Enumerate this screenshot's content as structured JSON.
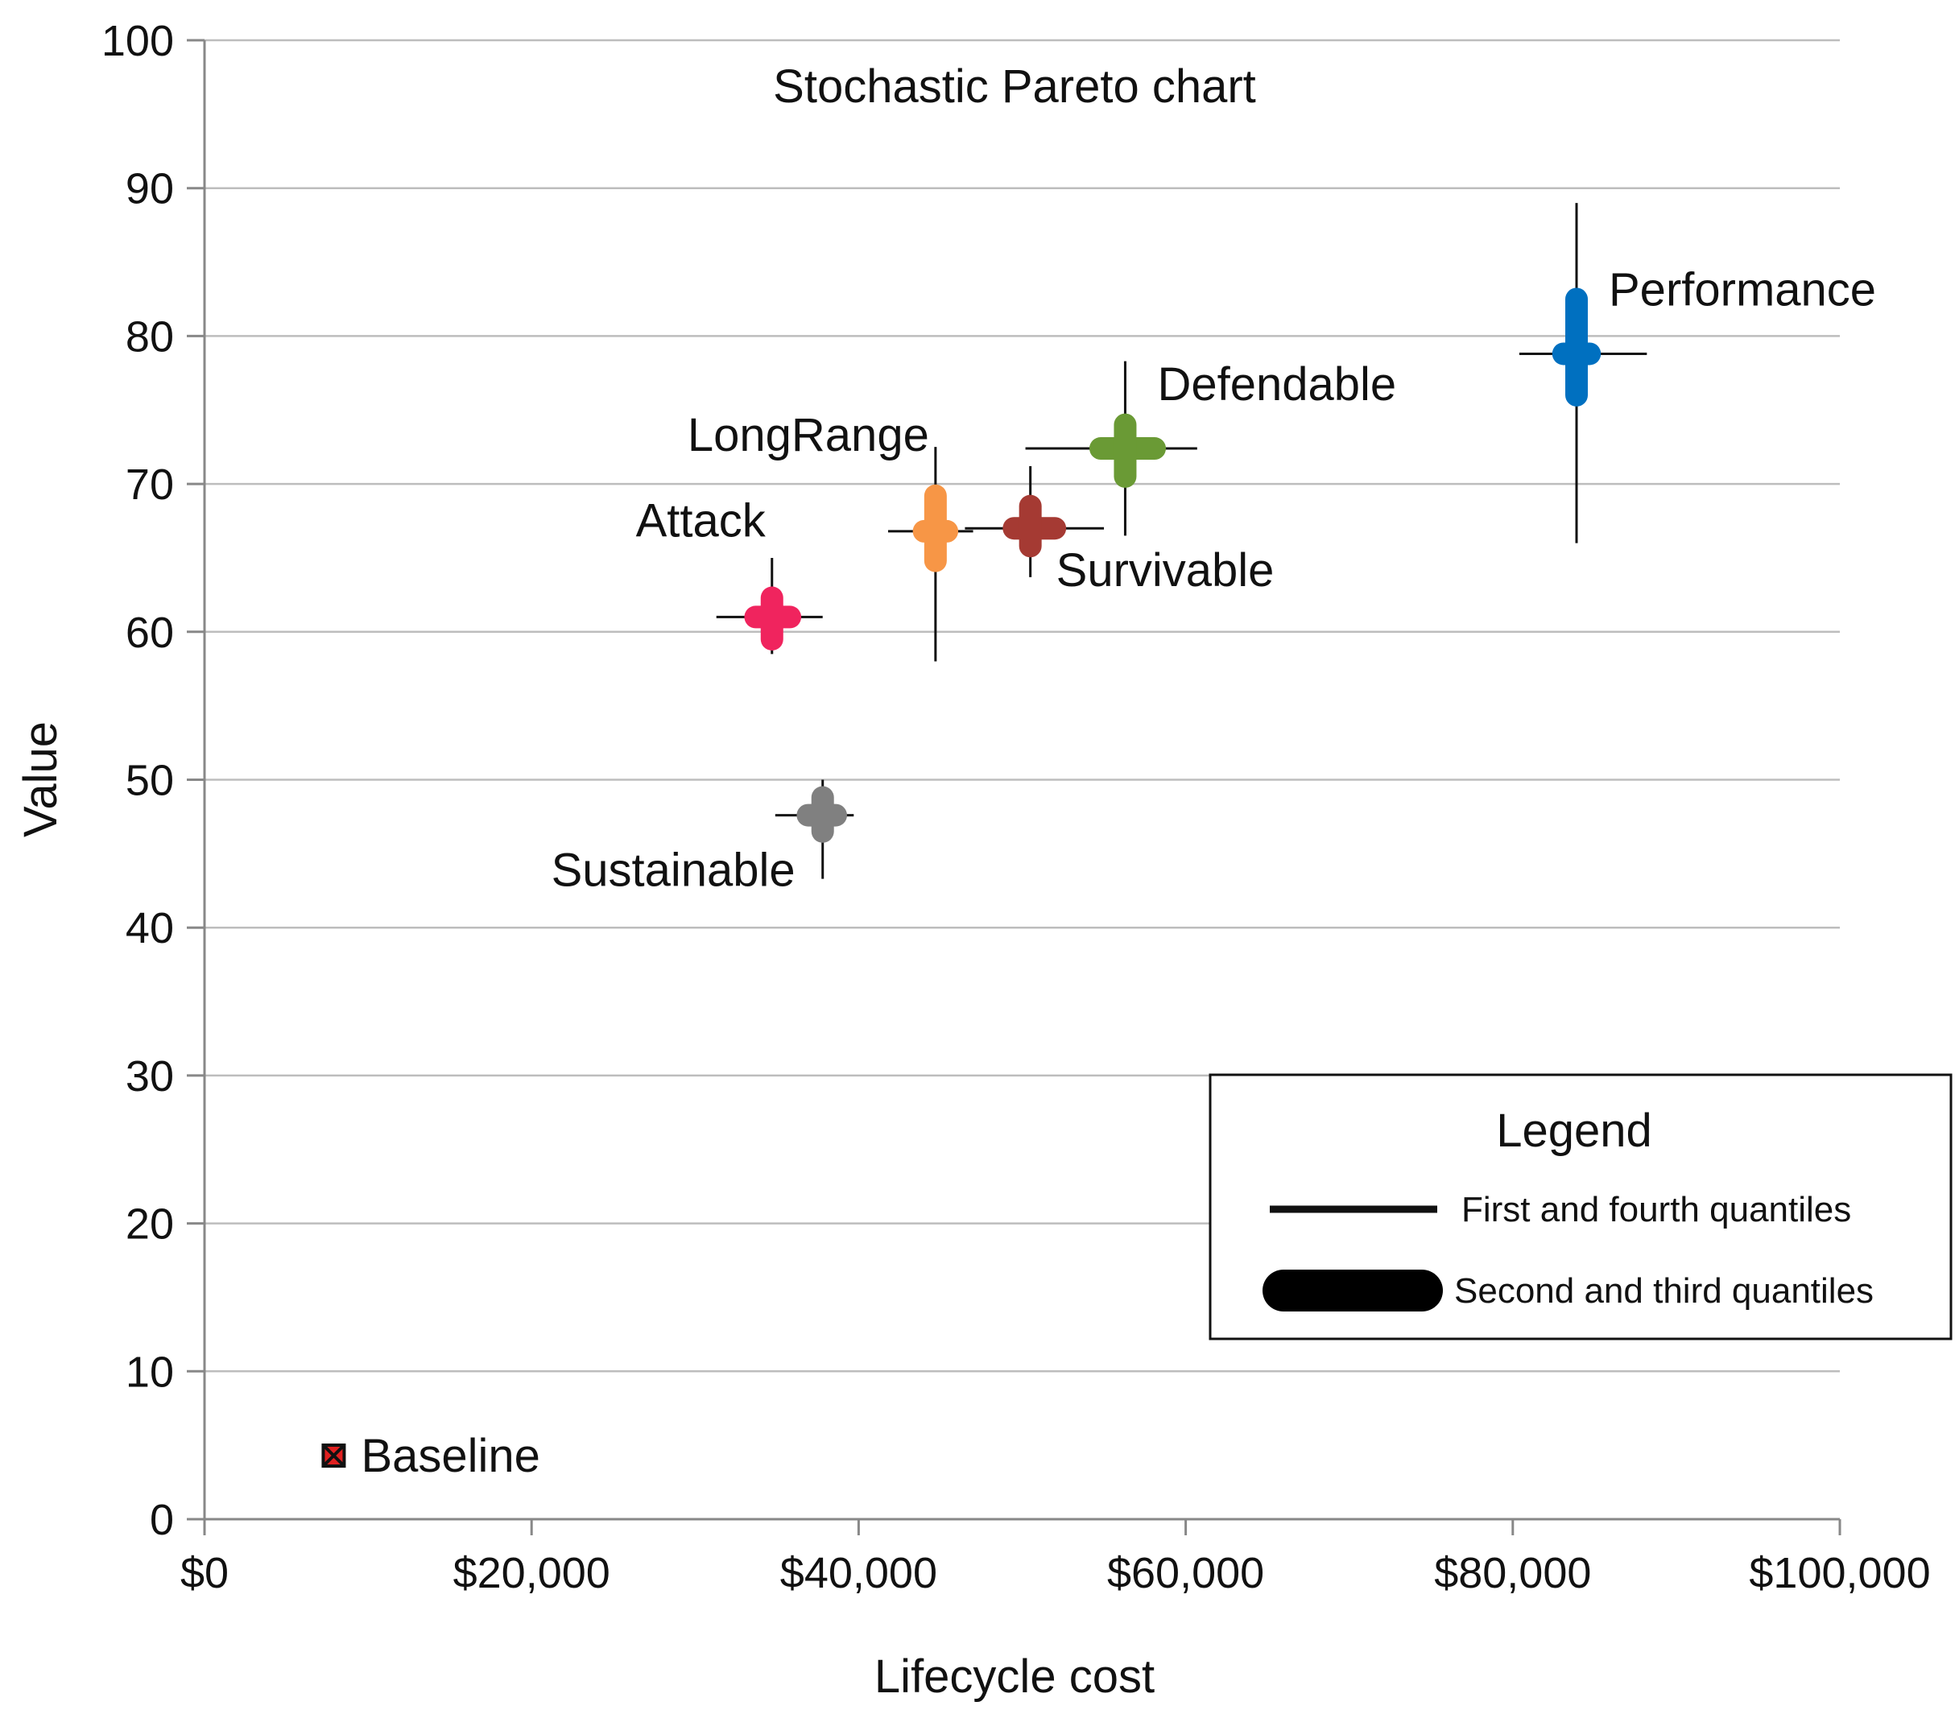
{
  "chart_data": {
    "type": "scatter",
    "title": "Stochastic Pareto chart",
    "xlabel": "Lifecycle cost",
    "ylabel": "Value",
    "xlim": [
      0,
      100000
    ],
    "ylim": [
      0,
      100
    ],
    "x_ticks": [
      0,
      20000,
      40000,
      60000,
      80000,
      100000
    ],
    "x_tick_labels": [
      "$0",
      "$20,000",
      "$40,000",
      "$60,000",
      "$80,000",
      "$100,000"
    ],
    "y_ticks": [
      0,
      10,
      20,
      30,
      40,
      50,
      60,
      70,
      80,
      90,
      100
    ],
    "y_tick_labels": [
      "0",
      "10",
      "20",
      "30",
      "40",
      "50",
      "60",
      "70",
      "80",
      "90",
      "100"
    ],
    "grid": "horizontal",
    "points": [
      {
        "name": "Performance",
        "color": "#0070C0",
        "x": 83900,
        "y": 78.8,
        "x_q": [
          80400,
          83100,
          84700,
          88200
        ],
        "y_q": [
          66,
          76,
          82.5,
          89
        ],
        "label_pos": "upper-right"
      },
      {
        "name": "Defendable",
        "color": "#6A9A35",
        "x": 56300,
        "y": 72.4,
        "x_q": [
          50200,
          54800,
          58100,
          60700
        ],
        "y_q": [
          66.5,
          70.5,
          74,
          78.3
        ],
        "label_pos": "upper-right"
      },
      {
        "name": "Survivable",
        "color": "#A53A33",
        "x": 50500,
        "y": 67.0,
        "x_q": [
          46500,
          49500,
          52000,
          55000
        ],
        "y_q": [
          63.7,
          65.8,
          68.5,
          71.2
        ],
        "label_pos": "lower-right"
      },
      {
        "name": "LongRange",
        "color": "#F79646",
        "x": 44700,
        "y": 66.8,
        "x_q": [
          41800,
          44000,
          45400,
          47000
        ],
        "y_q": [
          58,
          64.8,
          69.2,
          72.5
        ],
        "label_pos": "upper-left"
      },
      {
        "name": "Attack",
        "color": "#F0245E",
        "x": 34700,
        "y": 61.0,
        "x_q": [
          31300,
          33700,
          35800,
          37800
        ],
        "y_q": [
          58.5,
          59.5,
          62.3,
          65
        ],
        "label_pos": "upper-left"
      },
      {
        "name": "Sustainable",
        "color": "#808080",
        "x": 37800,
        "y": 47.6,
        "x_q": [
          34900,
          36900,
          38600,
          39700
        ],
        "y_q": [
          43.3,
          46.5,
          48.8,
          50
        ],
        "label_pos": "lower-left"
      }
    ],
    "baseline": {
      "name": "Baseline",
      "x": 7900,
      "y": 4.3,
      "color": "#E02020"
    },
    "legend": {
      "title": "Legend",
      "placement": "bottom-right",
      "items": [
        {
          "label": "First and fourth quantiles",
          "symbol": "thin-line"
        },
        {
          "label": "Second and third quantiles",
          "symbol": "thick-capsule"
        }
      ]
    }
  }
}
